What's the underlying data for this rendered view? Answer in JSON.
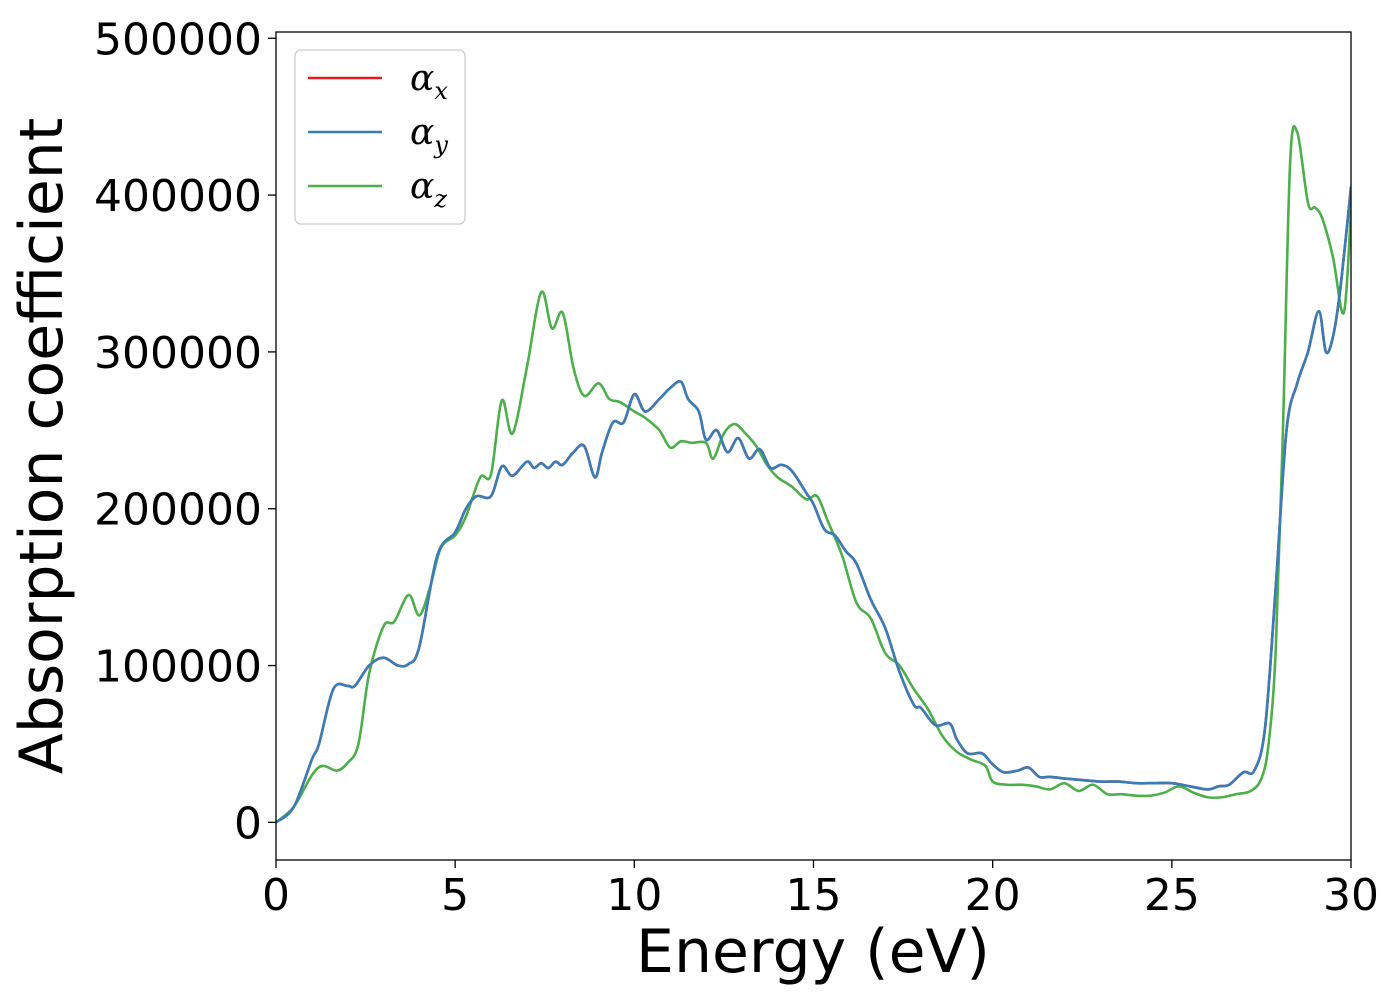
{
  "chart_data": {
    "type": "line",
    "title": "",
    "xlabel": "Energy (eV)",
    "ylabel": "Absorption coefficient",
    "xlim": [
      0,
      30
    ],
    "ylim": [
      -24000,
      504000
    ],
    "xticks": [
      0,
      5,
      10,
      15,
      20,
      25,
      30
    ],
    "yticks": [
      0,
      100000,
      200000,
      300000,
      400000,
      500000
    ],
    "xtick_labels": [
      "0",
      "5",
      "10",
      "15",
      "20",
      "25",
      "30"
    ],
    "ytick_labels": [
      "0",
      "100000",
      "200000",
      "300000",
      "400000",
      "500000"
    ],
    "grid": false,
    "legend_position": "top-left",
    "series": [
      {
        "name": "α_x",
        "symbol": "α",
        "sub": "x",
        "color": "#e41a1c",
        "x": [
          0,
          0.5,
          1,
          1.2,
          1.6,
          2,
          2.2,
          2.6,
          3,
          3.4,
          3.7,
          4,
          4.5,
          5,
          5.3,
          5.6,
          6,
          6.3,
          6.6,
          7,
          7.2,
          7.4,
          7.6,
          7.8,
          8,
          8.3,
          8.6,
          8.9,
          9.1,
          9.4,
          9.7,
          10,
          10.3,
          10.7,
          11,
          11.3,
          11.5,
          11.8,
          12,
          12.3,
          12.6,
          12.9,
          13.2,
          13.5,
          13.8,
          14.1,
          14.4,
          14.8,
          15,
          15.3,
          15.6,
          15.9,
          16.2,
          16.6,
          17,
          17.4,
          17.8,
          18,
          18.4,
          18.8,
          19,
          19.3,
          19.7,
          20,
          20.3,
          20.7,
          21,
          21.3,
          21.6,
          22,
          22.5,
          23,
          23.5,
          24,
          24.5,
          25,
          25.5,
          26,
          26.3,
          26.6,
          27,
          27.3,
          27.6,
          27.9,
          28.2,
          28.5,
          28.8,
          29.1,
          29.3,
          29.5,
          29.7,
          30
        ],
        "y": [
          0,
          10000,
          40000,
          50000,
          85000,
          87000,
          87000,
          100000,
          105000,
          100000,
          101000,
          112000,
          170000,
          185000,
          200000,
          208000,
          208000,
          227000,
          221000,
          230000,
          226000,
          229000,
          226000,
          230000,
          228000,
          236000,
          240000,
          220000,
          236000,
          255000,
          255000,
          273000,
          262000,
          270000,
          277000,
          281000,
          270000,
          262000,
          244000,
          250000,
          236000,
          245000,
          232000,
          238000,
          226000,
          228000,
          224000,
          210000,
          203000,
          187000,
          183000,
          173000,
          165000,
          142000,
          124000,
          96000,
          75000,
          73000,
          62000,
          63000,
          53000,
          44000,
          44000,
          37000,
          32000,
          33000,
          35000,
          29000,
          29000,
          28000,
          27000,
          26000,
          26000,
          25000,
          25000,
          25000,
          23000,
          21000,
          23000,
          24000,
          32000,
          33000,
          60000,
          150000,
          250000,
          280000,
          300000,
          326000,
          300000,
          310000,
          340000,
          405000
        ]
      },
      {
        "name": "α_y",
        "symbol": "α",
        "sub": "y",
        "color": "#377eb8",
        "x": [
          0,
          0.5,
          1,
          1.2,
          1.6,
          2,
          2.2,
          2.6,
          3,
          3.4,
          3.7,
          4,
          4.5,
          5,
          5.3,
          5.6,
          6,
          6.3,
          6.6,
          7,
          7.2,
          7.4,
          7.6,
          7.8,
          8,
          8.3,
          8.6,
          8.9,
          9.1,
          9.4,
          9.7,
          10,
          10.3,
          10.7,
          11,
          11.3,
          11.5,
          11.8,
          12,
          12.3,
          12.6,
          12.9,
          13.2,
          13.5,
          13.8,
          14.1,
          14.4,
          14.8,
          15,
          15.3,
          15.6,
          15.9,
          16.2,
          16.6,
          17,
          17.4,
          17.8,
          18,
          18.4,
          18.8,
          19,
          19.3,
          19.7,
          20,
          20.3,
          20.7,
          21,
          21.3,
          21.6,
          22,
          22.5,
          23,
          23.5,
          24,
          24.5,
          25,
          25.5,
          26,
          26.3,
          26.6,
          27,
          27.3,
          27.6,
          27.9,
          28.2,
          28.5,
          28.8,
          29.1,
          29.3,
          29.5,
          29.7,
          30
        ],
        "y": [
          0,
          10000,
          40000,
          50000,
          85000,
          87000,
          87000,
          100000,
          105000,
          100000,
          101000,
          112000,
          170000,
          185000,
          200000,
          208000,
          208000,
          227000,
          221000,
          230000,
          226000,
          229000,
          226000,
          230000,
          228000,
          236000,
          240000,
          220000,
          236000,
          255000,
          255000,
          273000,
          262000,
          270000,
          277000,
          281000,
          270000,
          262000,
          244000,
          250000,
          236000,
          245000,
          232000,
          238000,
          226000,
          228000,
          224000,
          210000,
          203000,
          187000,
          183000,
          173000,
          165000,
          142000,
          124000,
          96000,
          75000,
          73000,
          62000,
          63000,
          53000,
          44000,
          44000,
          37000,
          32000,
          33000,
          35000,
          29000,
          29000,
          28000,
          27000,
          26000,
          26000,
          25000,
          25000,
          25000,
          23000,
          21000,
          23000,
          24000,
          32000,
          33000,
          60000,
          150000,
          250000,
          280000,
          300000,
          326000,
          300000,
          310000,
          340000,
          405000
        ]
      },
      {
        "name": "α_z",
        "symbol": "α",
        "sub": "z",
        "color": "#4daf4a",
        "x": [
          0,
          0.5,
          1,
          1.3,
          1.7,
          2,
          2.3,
          2.6,
          3,
          3.3,
          3.7,
          4,
          4.3,
          4.6,
          5,
          5.3,
          5.7,
          6,
          6.3,
          6.6,
          7,
          7.4,
          7.7,
          8,
          8.3,
          8.6,
          9,
          9.3,
          9.6,
          10,
          10.3,
          10.7,
          11,
          11.3,
          11.6,
          12,
          12.2,
          12.5,
          12.8,
          13.1,
          13.4,
          13.7,
          14,
          14.4,
          14.8,
          15.1,
          15.4,
          15.8,
          16.2,
          16.6,
          17,
          17.4,
          17.8,
          18.2,
          18.6,
          19,
          19.4,
          19.8,
          20,
          20.4,
          20.8,
          21.2,
          21.6,
          22,
          22.4,
          22.8,
          23.2,
          23.6,
          24,
          24.4,
          24.8,
          25.2,
          25.6,
          26,
          26.4,
          26.8,
          27.2,
          27.5,
          27.7,
          27.9,
          28.1,
          28.3,
          28.5,
          28.8,
          29,
          29.2,
          29.5,
          29.8,
          30
        ],
        "y": [
          0,
          10000,
          30000,
          36000,
          33000,
          38000,
          50000,
          95000,
          125000,
          128000,
          145000,
          132000,
          150000,
          175000,
          183000,
          195000,
          220000,
          222000,
          269000,
          248000,
          290000,
          338000,
          315000,
          325000,
          290000,
          272000,
          280000,
          270000,
          268000,
          262000,
          258000,
          250000,
          239000,
          243000,
          242000,
          242000,
          232000,
          248000,
          254000,
          248000,
          240000,
          228000,
          220000,
          214000,
          206000,
          208000,
          192000,
          170000,
          140000,
          130000,
          108000,
          100000,
          85000,
          72000,
          55000,
          45000,
          40000,
          36000,
          26000,
          24000,
          24000,
          23000,
          21000,
          25000,
          20000,
          24000,
          18000,
          18000,
          17000,
          17000,
          19000,
          23000,
          19000,
          16000,
          16000,
          18000,
          20000,
          28000,
          50000,
          110000,
          250000,
          420000,
          440000,
          395000,
          392000,
          385000,
          360000,
          325000,
          390000
        ]
      }
    ]
  }
}
